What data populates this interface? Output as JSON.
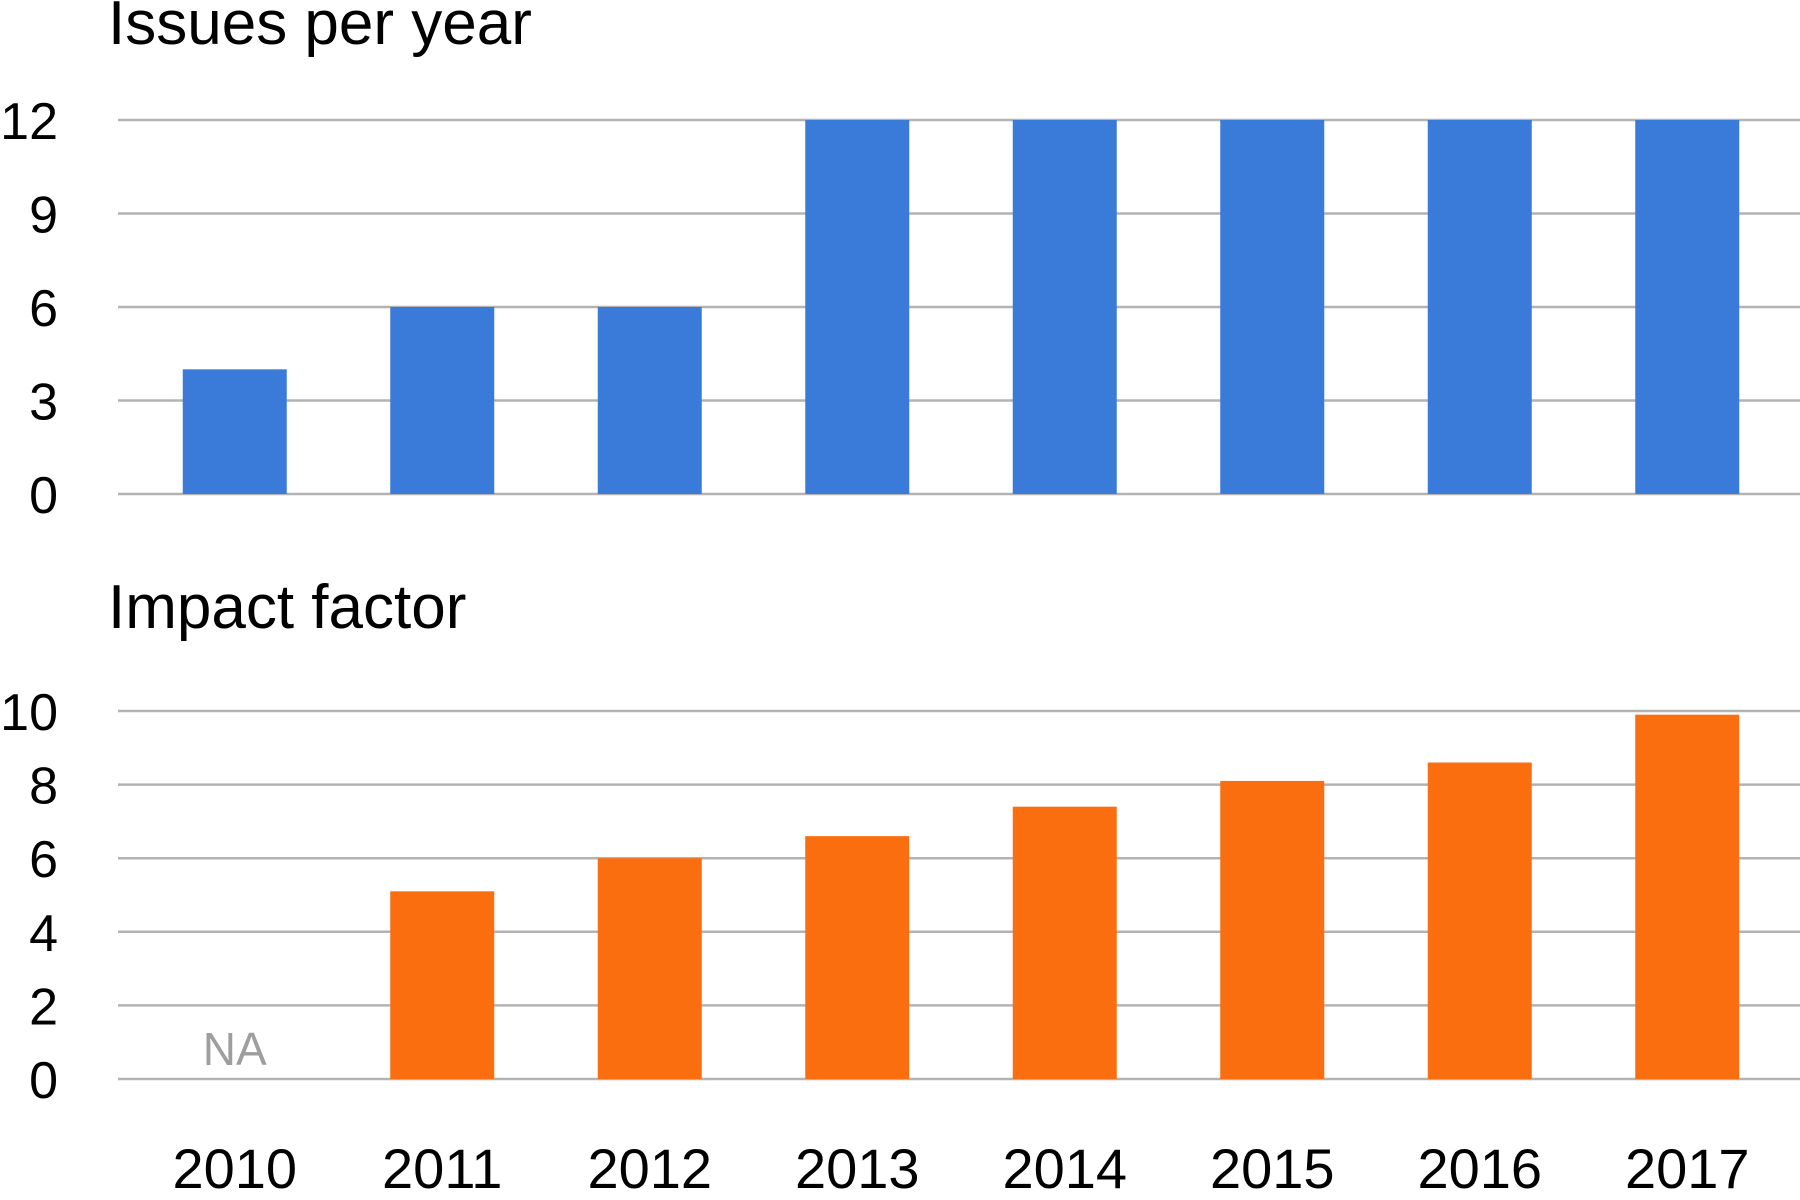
{
  "chart_data": [
    {
      "type": "bar",
      "title": "Issues per year",
      "categories": [
        "2010",
        "2011",
        "2012",
        "2013",
        "2014",
        "2015",
        "2016",
        "2017"
      ],
      "values": [
        4,
        6,
        6,
        12,
        12,
        12,
        12,
        12
      ],
      "yticks": [
        "0",
        "3",
        "6",
        "9",
        "12"
      ],
      "ylim": [
        0,
        12
      ],
      "grid": true,
      "color": "#3a7ad8"
    },
    {
      "type": "bar",
      "title": "Impact factor",
      "categories": [
        "2010",
        "2011",
        "2012",
        "2013",
        "2014",
        "2015",
        "2016",
        "2017"
      ],
      "values": [
        null,
        5.1,
        6.0,
        6.6,
        7.4,
        8.1,
        8.6,
        9.9
      ],
      "na_label": "NA",
      "yticks": [
        "0",
        "2",
        "4",
        "6",
        "8",
        "10"
      ],
      "ylim": [
        0,
        10
      ],
      "grid": true,
      "color": "#fa6e0f"
    }
  ]
}
